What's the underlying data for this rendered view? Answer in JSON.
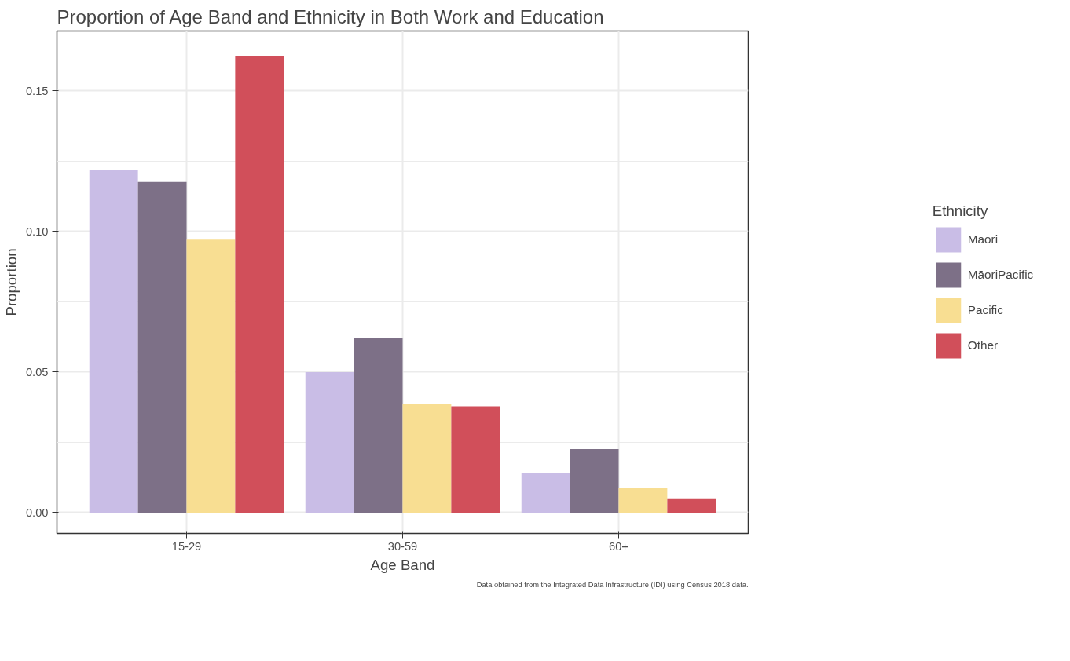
{
  "chart_data": {
    "type": "bar",
    "title": "Proportion of Age Band and Ethnicity in Both Work and Education",
    "xlabel": "Age Band",
    "ylabel": "Proportion",
    "legend_title": "Ethnicity",
    "categories": [
      "15-29",
      "30-59",
      "60+"
    ],
    "series": [
      {
        "name": "Māori",
        "color": "#c9bde6",
        "values": [
          0.1218,
          0.05,
          0.0141
        ]
      },
      {
        "name": "MāoriPacific",
        "color": "#7d7087",
        "values": [
          0.1176,
          0.0622,
          0.0226
        ]
      },
      {
        "name": "Pacific",
        "color": "#f8de92",
        "values": [
          0.0971,
          0.0388,
          0.0088
        ]
      },
      {
        "name": "Other",
        "color": "#d14f5a",
        "values": [
          0.1625,
          0.0378,
          0.0048
        ]
      }
    ],
    "ylim": [
      -0.0074,
      0.1713
    ],
    "yticks": [
      {
        "value": 0,
        "label": "0.00"
      },
      0.05,
      {
        "value": 0.1,
        "label": "0.10"
      },
      0.15
    ],
    "grid": true,
    "legend": "right",
    "annotations": [
      "Data obtained from the Integrated Data Infrastructure (IDI) using Census 2018 data."
    ]
  }
}
